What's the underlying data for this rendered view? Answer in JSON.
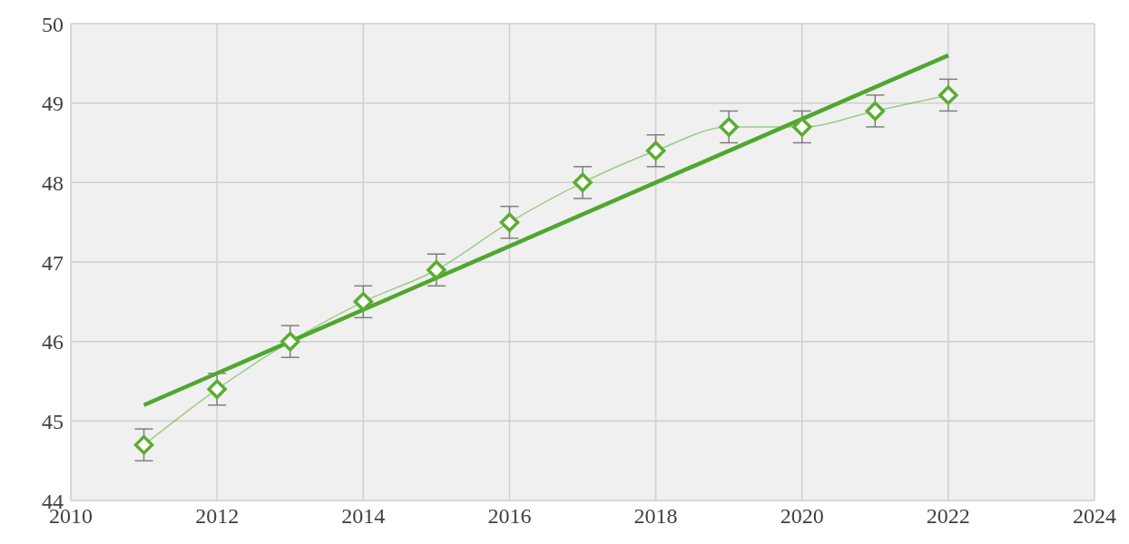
{
  "chart_data": {
    "type": "line",
    "x": [
      2011,
      2012,
      2013,
      2014,
      2015,
      2016,
      2017,
      2018,
      2019,
      2020,
      2021,
      2022
    ],
    "series": [
      {
        "color": "#5aad33",
        "marker": "diamond",
        "values": [
          44.7,
          45.4,
          46.0,
          46.5,
          46.9,
          47.5,
          48.0,
          48.4,
          48.7,
          48.7,
          48.9,
          49.1
        ],
        "errors": [
          0.2,
          0.2,
          0.2,
          0.2,
          0.2,
          0.2,
          0.2,
          0.2,
          0.2,
          0.2,
          0.2,
          0.2
        ]
      },
      {
        "color": "#4ea72e",
        "marker": "none",
        "x": [
          2011,
          2022
        ],
        "values": [
          45.2,
          49.6
        ]
      }
    ],
    "xlim": [
      2010,
      2024
    ],
    "xticks": [
      2010,
      2012,
      2014,
      2016,
      2018,
      2020,
      2022,
      2024
    ],
    "ylim": [
      44,
      50
    ],
    "yticks": [
      44,
      45,
      46,
      47,
      48,
      49,
      50
    ],
    "grid": true,
    "legend": false
  }
}
